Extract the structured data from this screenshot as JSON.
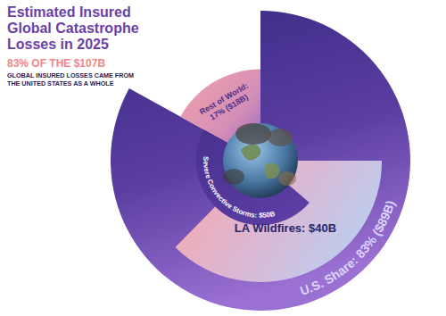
{
  "chart_data": {
    "type": "pie",
    "title": "Estimated Insured Global Catastrophe Losses in 2025",
    "subtitle": "83% OF THE $107B",
    "annotation": "GLOBAL INSURED LOSSES CAME FROM THE UNITED STATES AS A WHOLE",
    "categories": [
      "U.S. Share: 83% ($89B)",
      "Rest of World: 17% ($18B)"
    ],
    "values": [
      83,
      17
    ],
    "colors": [
      "#5a3da0",
      "#f3a3a8"
    ],
    "data_labels": true,
    "total": 107,
    "highlights": [
      {
        "label": "LA Wildfires: $40B",
        "value": 40,
        "color": "#b7d2f4"
      },
      {
        "label": "Severe Convective Storms: $50B",
        "value": 50,
        "color": "#5e3fa6"
      }
    ]
  }
}
